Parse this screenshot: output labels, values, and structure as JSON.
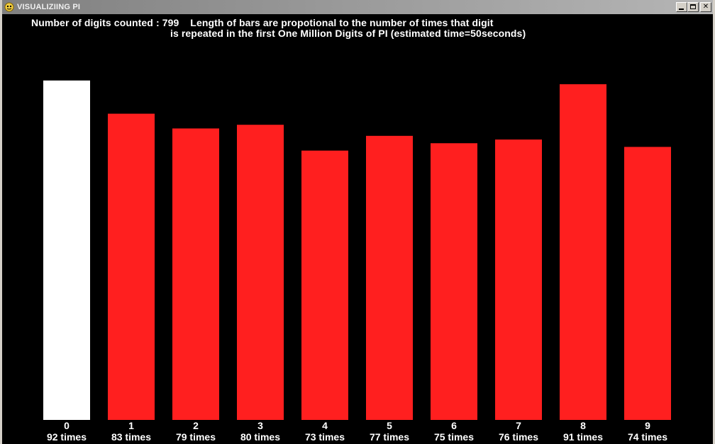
{
  "window": {
    "title": "VISUALIZIING PI",
    "icon": "pygame-snake-icon",
    "buttons": {
      "minimize": "minimize-icon",
      "maximize": "maximize-icon",
      "close": "close-icon"
    }
  },
  "header": {
    "line1": "Number of digits counted : 799    Length of bars are propotional to the number of times that digit",
    "line2": "is repeated in the first One Million Digits of PI (estimated time=50seconds)"
  },
  "colors": {
    "background": "#000000",
    "highlight_bar": "#ffffff",
    "bar": "#ff1f1f",
    "text": "#ffffff"
  },
  "chart_data": {
    "type": "bar",
    "categories": [
      "0",
      "1",
      "2",
      "3",
      "4",
      "5",
      "6",
      "7",
      "8",
      "9"
    ],
    "values": [
      92,
      83,
      79,
      80,
      73,
      77,
      75,
      76,
      91,
      74
    ],
    "value_labels": [
      "92 times",
      "83 times",
      "79 times",
      "80 times",
      "73 times",
      "77 times",
      "75 times",
      "76 times",
      "91 times",
      "74 times"
    ],
    "highlighted_index": 0,
    "title": "",
    "xlabel": "",
    "ylabel": "",
    "grid": false,
    "legend": "none"
  }
}
